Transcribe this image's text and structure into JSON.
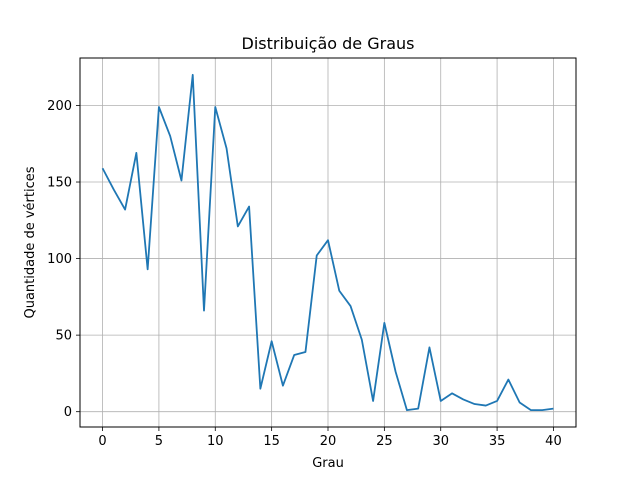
{
  "chart_data": {
    "type": "line",
    "title": "Distribuição de Graus",
    "xlabel": "Grau",
    "ylabel": "Quantidade de vértices",
    "xlim": [
      -2,
      42
    ],
    "ylim": [
      -10,
      231
    ],
    "xticks": [
      0,
      5,
      10,
      15,
      20,
      25,
      30,
      35,
      40
    ],
    "yticks": [
      0,
      50,
      100,
      150,
      200
    ],
    "grid": true,
    "line_color": "#1f77b4",
    "series": [
      {
        "x": [
          0,
          1,
          2,
          3,
          4,
          5,
          6,
          7,
          8,
          9,
          10,
          11,
          12,
          13,
          14,
          15,
          16,
          17,
          18,
          19,
          20,
          21,
          22,
          23,
          24,
          25,
          26,
          27,
          28,
          29,
          30,
          31,
          32,
          33,
          34,
          35,
          36,
          37,
          38,
          39,
          40
        ],
        "values": [
          159,
          145,
          132,
          169,
          93,
          199,
          180,
          151,
          220,
          66,
          199,
          172,
          121,
          134,
          15,
          46,
          17,
          37,
          39,
          102,
          112,
          79,
          69,
          47,
          7,
          58,
          26,
          1,
          2,
          42,
          7,
          12,
          8,
          5,
          4,
          7,
          21,
          6,
          1,
          1,
          2
        ]
      }
    ]
  }
}
